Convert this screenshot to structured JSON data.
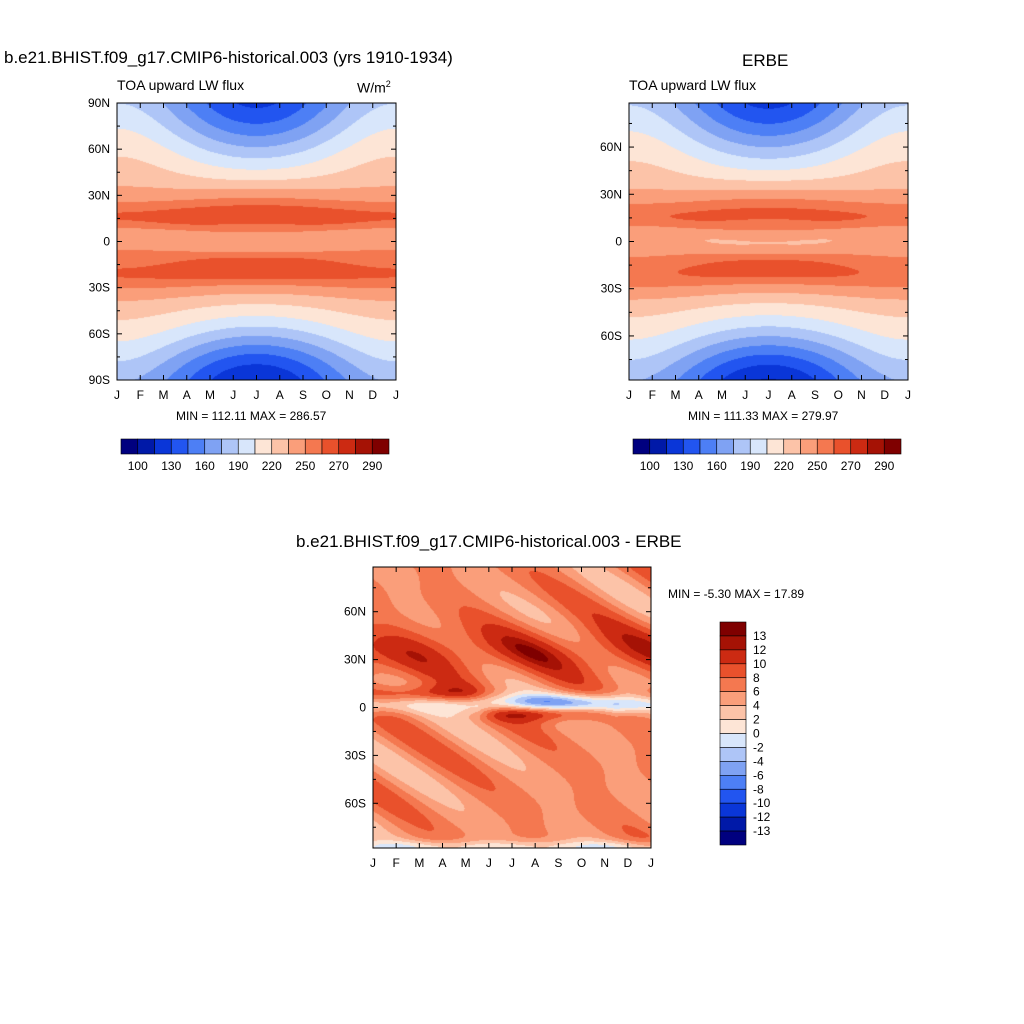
{
  "panels": [
    {
      "title": "b.e21.BHIST.f09_g17.CMIP6-historical.003 (yrs 1910-1934)",
      "left_label": "TOA upward LW flux",
      "right_label": "W/m",
      "right_label_sup": "2",
      "min_max": "MIN = 112.11 MAX = 286.57"
    },
    {
      "title": "ERBE",
      "left_label": "TOA upward LW flux",
      "min_max": "MIN = 111.33 MAX = 279.97"
    },
    {
      "title": "b.e21.BHIST.f09_g17.CMIP6-historical.003 - ERBE",
      "min_max": "MIN =  -5.30 MAX =  17.89"
    }
  ],
  "colors": {
    "flux_palette": [
      "#00007f",
      "#0019a8",
      "#0a36d8",
      "#2255f0",
      "#4d7ff5",
      "#7fa2f3",
      "#aec5f7",
      "#d8e6fb",
      "#fde5d6",
      "#fcc3a8",
      "#fa9e7a",
      "#f47850",
      "#e9512c",
      "#cc2a12",
      "#a51205",
      "#7f0000"
    ],
    "diff_palette": [
      "#7f0000",
      "#a51205",
      "#cc2a12",
      "#e9512c",
      "#f47850",
      "#fa9e7a",
      "#fcc3a8",
      "#fde5d6",
      "#d8e6fb",
      "#aec5f7",
      "#7fa2f3",
      "#4d7ff5",
      "#2255f0",
      "#0a36d8",
      "#0019a8",
      "#00007f"
    ]
  },
  "chart_data": [
    {
      "type": "heatmap",
      "title": "b.e21.BHIST.f09_g17.CMIP6-historical.003 (yrs 1910-1934)",
      "x_tick_labels": [
        "J",
        "F",
        "M",
        "A",
        "M",
        "J",
        "J",
        "A",
        "S",
        "O",
        "N",
        "D",
        "J"
      ],
      "y_tick_labels": [
        "90N",
        "60N",
        "30N",
        "0",
        "30S",
        "60S",
        "90S"
      ],
      "y_ticks_deg": [
        90,
        60,
        30,
        0,
        -30,
        -60,
        -90
      ],
      "ylim": [
        -90,
        90
      ],
      "colorbar_labels": [
        "100",
        "130",
        "160",
        "190",
        "220",
        "250",
        "270",
        "290"
      ],
      "min": 112.11,
      "max": 286.57,
      "units": "W/m2"
    },
    {
      "type": "heatmap",
      "title": "ERBE",
      "x_tick_labels": [
        "J",
        "F",
        "M",
        "A",
        "M",
        "J",
        "J",
        "A",
        "S",
        "O",
        "N",
        "D",
        "J"
      ],
      "y_tick_labels": [
        "60N",
        "30N",
        "0",
        "30S",
        "60S"
      ],
      "y_ticks_deg": [
        60,
        30,
        0,
        -30,
        -60
      ],
      "ylim": [
        -88,
        88
      ],
      "colorbar_labels": [
        "100",
        "130",
        "160",
        "190",
        "220",
        "250",
        "270",
        "290"
      ],
      "min": 111.33,
      "max": 279.97
    },
    {
      "type": "heatmap",
      "title": "b.e21.BHIST.f09_g17.CMIP6-historical.003 - ERBE",
      "x_tick_labels": [
        "J",
        "F",
        "M",
        "A",
        "M",
        "J",
        "J",
        "A",
        "S",
        "O",
        "N",
        "D",
        "J"
      ],
      "y_tick_labels": [
        "60N",
        "30N",
        "0",
        "30S",
        "60S"
      ],
      "y_ticks_deg": [
        60,
        30,
        0,
        -30,
        -60
      ],
      "ylim": [
        -88,
        88
      ],
      "colorbar_labels": [
        "13",
        "12",
        "10",
        "8",
        "6",
        "4",
        "2",
        "0",
        "-2",
        "-4",
        "-6",
        "-8",
        "-10",
        "-12",
        "-13"
      ],
      "min": -5.3,
      "max": 17.89
    }
  ]
}
